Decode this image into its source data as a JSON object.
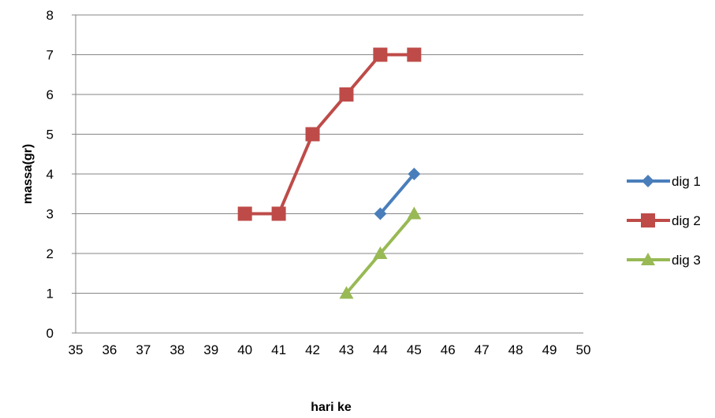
{
  "chart_data": {
    "type": "line",
    "xlabel": "hari ke",
    "ylabel": "massa(gr)",
    "xlim": [
      35,
      50
    ],
    "ylim": [
      0,
      8
    ],
    "x_ticks": [
      35,
      36,
      37,
      38,
      39,
      40,
      41,
      42,
      43,
      44,
      45,
      46,
      47,
      48,
      49,
      50
    ],
    "y_ticks": [
      0,
      1,
      2,
      3,
      4,
      5,
      6,
      7,
      8
    ],
    "grid": "horizontal",
    "legend_position": "right",
    "series": [
      {
        "name": "dig 1",
        "color": "#4a7ebb",
        "marker": "diamond",
        "points": [
          [
            44,
            3
          ],
          [
            45,
            4
          ]
        ]
      },
      {
        "name": "dig 2",
        "color": "#be4b48",
        "marker": "square",
        "points": [
          [
            40,
            3
          ],
          [
            41,
            3
          ],
          [
            42,
            5
          ],
          [
            43,
            6
          ],
          [
            44,
            7
          ],
          [
            45,
            7
          ]
        ]
      },
      {
        "name": "dig 3",
        "color": "#98b954",
        "marker": "triangle",
        "points": [
          [
            43,
            1
          ],
          [
            44,
            2
          ],
          [
            45,
            3
          ]
        ]
      }
    ]
  }
}
